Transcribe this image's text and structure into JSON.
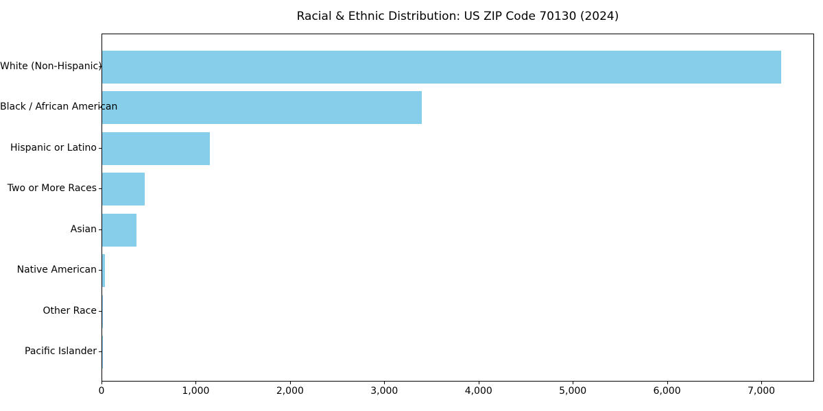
{
  "chart_data": {
    "type": "bar",
    "orientation": "horizontal",
    "title": "Racial & Ethnic Distribution: US ZIP Code 70130 (2024)",
    "categories": [
      "White (Non-Hispanic)",
      "Black / African American",
      "Hispanic or Latino",
      "Two or More Races",
      "Asian",
      "Native American",
      "Other Race",
      "Pacific Islander"
    ],
    "values": [
      7200,
      3390,
      1140,
      450,
      365,
      30,
      10,
      5
    ],
    "xlabel": "",
    "ylabel": "",
    "xlim": [
      0,
      7560
    ],
    "x_ticks": [
      0,
      1000,
      2000,
      3000,
      4000,
      5000,
      6000,
      7000
    ],
    "x_tick_labels": [
      "0",
      "1,000",
      "2,000",
      "3,000",
      "4,000",
      "5,000",
      "6,000",
      "7,000"
    ],
    "bar_color": "#87CEEB",
    "axis_color": "#000000",
    "background_color": "#ffffff",
    "grid": false,
    "legend": "none"
  }
}
